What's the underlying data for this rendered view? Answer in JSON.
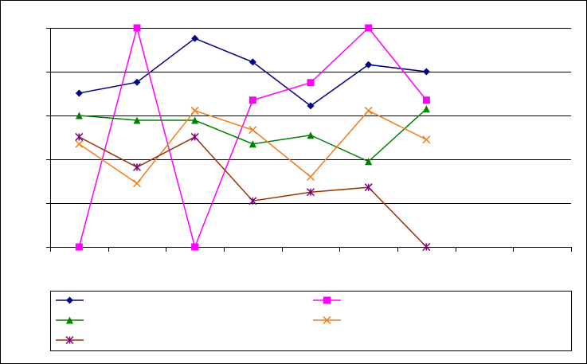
{
  "chart_data": {
    "type": "line",
    "categories": [
      null,
      null,
      null,
      null,
      null,
      null,
      null,
      null,
      null
    ],
    "series": [
      {
        "color": "#000080",
        "marker": "diamond",
        "marker_color": "#000080",
        "values": [
          3.51,
          3.76,
          4.76,
          4.22,
          3.22,
          4.16,
          4.0,
          null,
          null
        ]
      },
      {
        "color": "#ff00ff",
        "marker": "square",
        "marker_color": "#ff00ff",
        "values": [
          0,
          5,
          0,
          3.35,
          3.75,
          5,
          3.35,
          null,
          null
        ]
      },
      {
        "color": "#008000",
        "marker": "triangle",
        "marker_color": "#008000",
        "values": [
          3.0,
          2.89,
          2.89,
          2.35,
          2.55,
          1.95,
          3.15,
          null,
          null
        ]
      },
      {
        "color": "#f07c1c",
        "marker": "x",
        "marker_color": "#f07c1c",
        "values": [
          2.35,
          1.45,
          3.11,
          2.67,
          1.6,
          3.11,
          2.45,
          null,
          null
        ]
      },
      {
        "color": "#993300",
        "marker": "star",
        "marker_color": "#800080",
        "values": [
          2.51,
          1.82,
          2.51,
          1.05,
          1.25,
          1.36,
          0,
          null,
          null
        ]
      }
    ],
    "ylim": [
      0,
      5
    ],
    "yticks": [
      0,
      1,
      2,
      3,
      4,
      5
    ],
    "grid": true
  }
}
